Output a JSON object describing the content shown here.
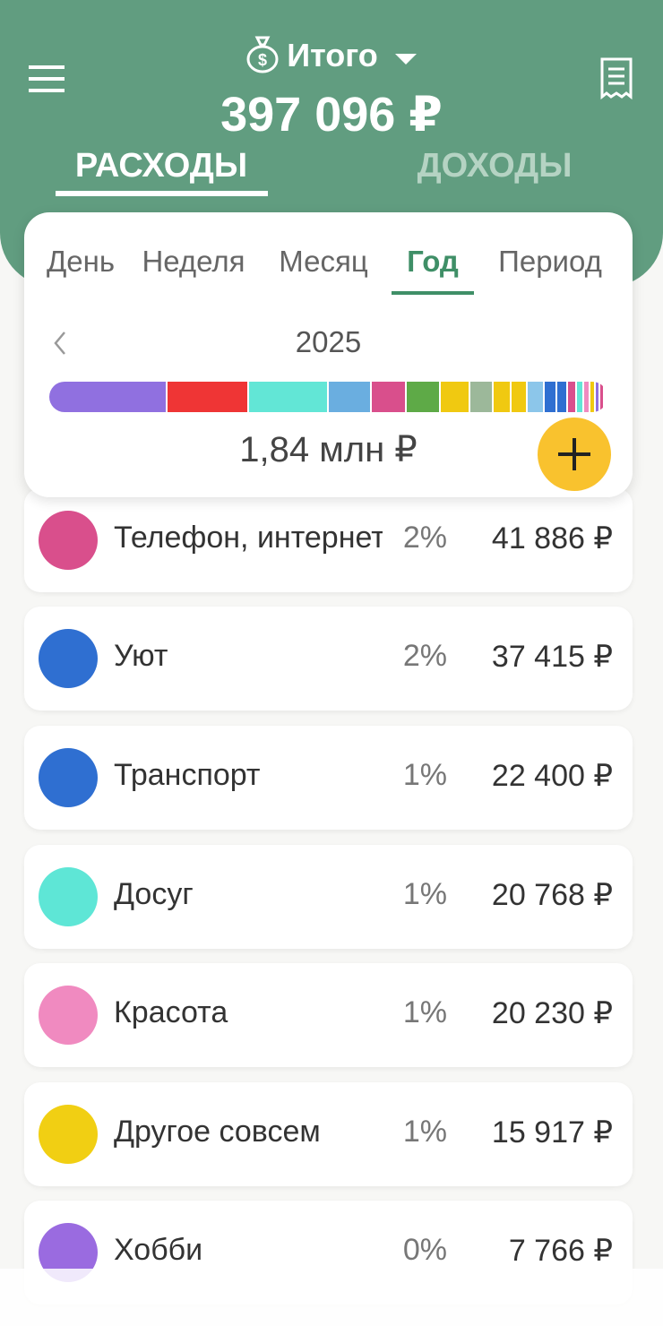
{
  "header": {
    "account": "Итого",
    "balance": "397 096 ₽",
    "tabs": [
      "РАСХОДЫ",
      "ДОХОДЫ"
    ],
    "active_tab": 0
  },
  "period": {
    "tabs": [
      "День",
      "Неделя",
      "Месяц",
      "Год",
      "Период"
    ],
    "active_tab": 3,
    "year": "2025",
    "total": "1,84 млн ₽"
  },
  "categories": [
    {
      "name": "Телефон, интернет",
      "percent": "2%",
      "amount": "41 886 ₽",
      "color": "#d94f8c"
    },
    {
      "name": "Уют",
      "percent": "2%",
      "amount": "37 415 ₽",
      "color": "#2f6fd1"
    },
    {
      "name": "Транспорт",
      "percent": "1%",
      "amount": "22 400 ₽",
      "color": "#2f6fd1"
    },
    {
      "name": "Досуг",
      "percent": "1%",
      "amount": "20 768 ₽",
      "color": "#5ee6d6"
    },
    {
      "name": "Красота",
      "percent": "1%",
      "amount": "20 230 ₽",
      "color": "#f08ac0"
    },
    {
      "name": "Другое совсем",
      "percent": "1%",
      "amount": "15 917 ₽",
      "color": "#f1cf13"
    },
    {
      "name": "Хобби",
      "percent": "0%",
      "amount": "7 766 ₽",
      "color": "#9a6be0"
    }
  ]
}
